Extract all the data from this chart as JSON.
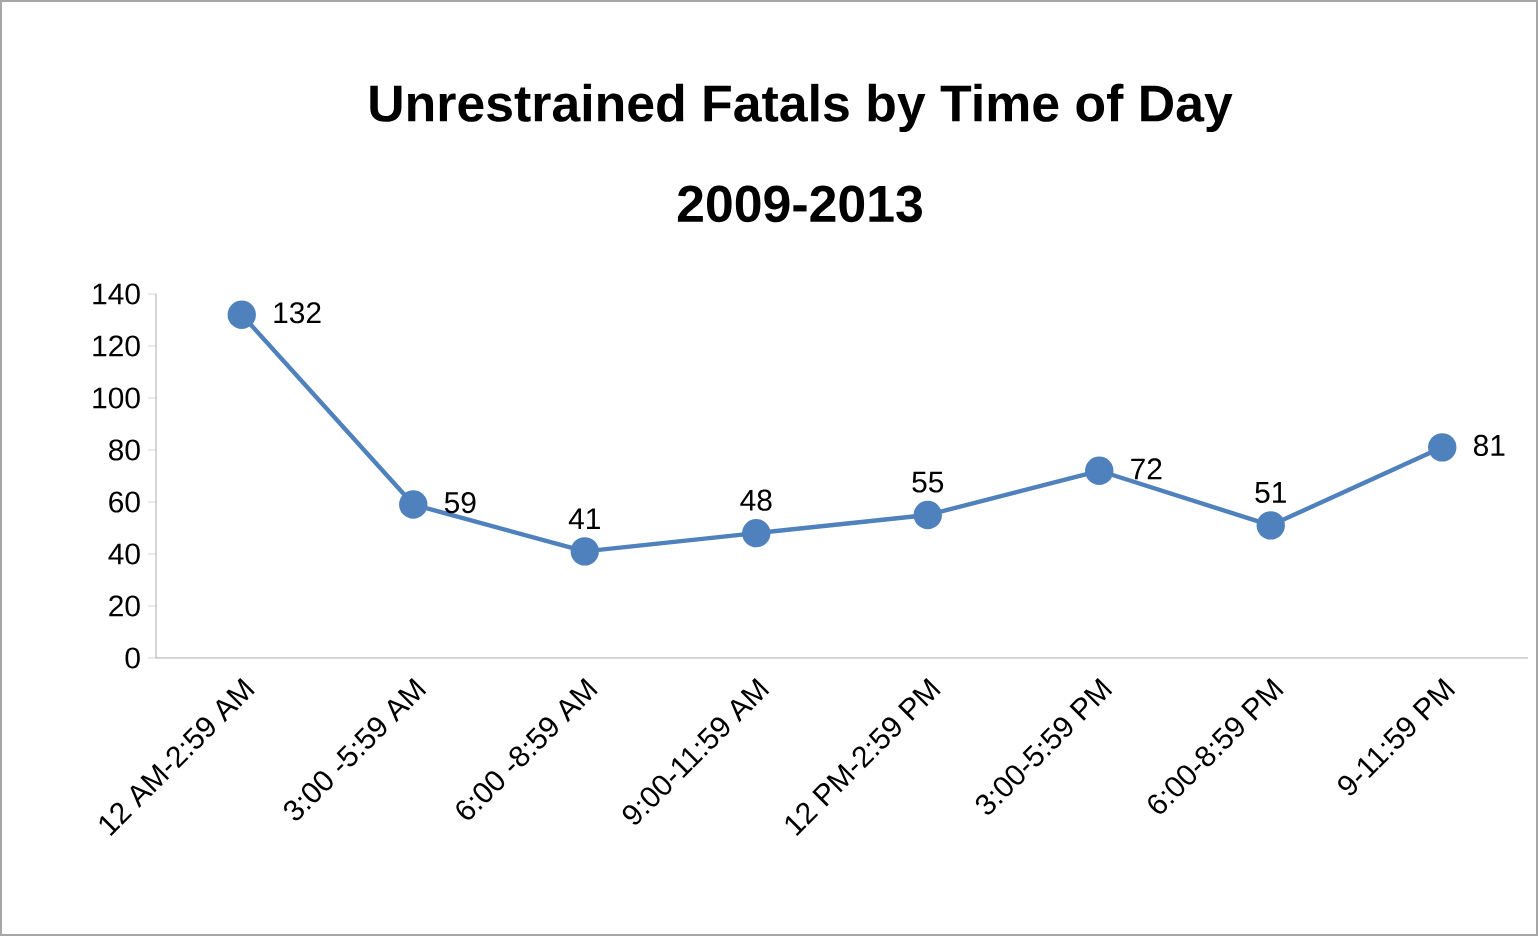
{
  "chart_data": {
    "type": "line",
    "title": "Unrestrained Fatals by Time of Day",
    "subtitle": "2009-2013",
    "categories": [
      "12 AM-2:59 AM",
      "3:00 -5:59 AM",
      "6:00 -8:59 AM",
      "9:00-11:59 AM",
      "12 PM-2:59 PM",
      "3:00-5:59 PM",
      "6:00-8:59 PM",
      "9-11:59 PM"
    ],
    "series": [
      {
        "color": "#4f81bd",
        "values": [
          132,
          59,
          41,
          48,
          55,
          72,
          51,
          81
        ]
      }
    ],
    "ylim": [
      0,
      140
    ],
    "yticks": [
      0,
      20,
      40,
      60,
      80,
      100,
      120,
      140
    ],
    "marker": "circle",
    "line_style": "solid",
    "data_labels": true,
    "grid": false
  }
}
